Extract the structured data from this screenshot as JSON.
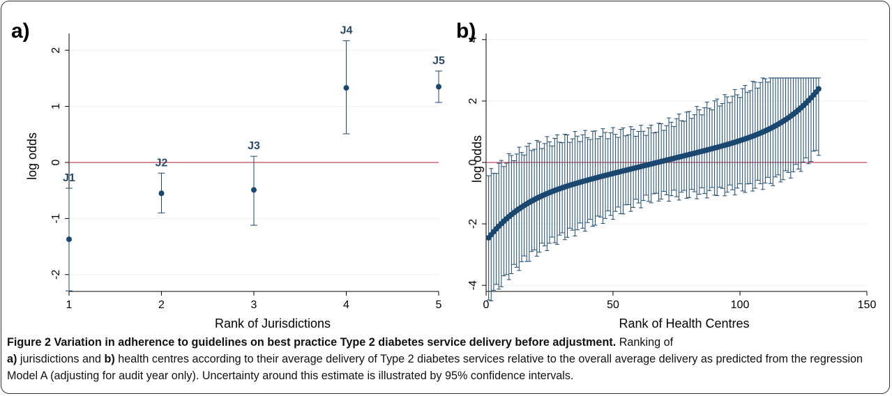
{
  "chart_data": [
    {
      "type": "scatter",
      "panel_label": "a)",
      "xlabel": "Rank of Jurisdictions",
      "ylabel": "log odds",
      "xlim": [
        1,
        5
      ],
      "ylim": [
        -2.3,
        2.3
      ],
      "xticks": [
        1,
        2,
        3,
        4,
        5
      ],
      "yticks": [
        -2,
        -1,
        0,
        1,
        2
      ],
      "reference_line_y": 0,
      "points": [
        {
          "x": 1,
          "y": -1.37,
          "lower": -2.29,
          "upper": -0.46,
          "label": "J1"
        },
        {
          "x": 2,
          "y": -0.55,
          "lower": -0.9,
          "upper": -0.19,
          "label": "J2"
        },
        {
          "x": 3,
          "y": -0.49,
          "lower": -1.12,
          "upper": 0.11,
          "label": "J3"
        },
        {
          "x": 4,
          "y": 1.33,
          "lower": 0.51,
          "upper": 2.17,
          "label": "J4"
        },
        {
          "x": 5,
          "y": 1.35,
          "lower": 1.07,
          "upper": 1.63,
          "label": "J5"
        }
      ]
    },
    {
      "type": "scatter",
      "panel_label": "b)",
      "xlabel": "Rank of Health Centres",
      "ylabel": "log odds",
      "xlim": [
        0,
        150
      ],
      "ylim": [
        -4.2,
        4.2
      ],
      "xticks": [
        0,
        50,
        100,
        150
      ],
      "yticks": [
        -4,
        -2,
        0,
        2,
        4
      ],
      "reference_line_y": 0,
      "n_points": 131,
      "y_start": -2.5,
      "y_end": 2.35
    }
  ],
  "caption": {
    "figure_label": "Figure 2",
    "title": "Variation in adherence to guidelines on best practice Type 2 diabetes service delivery before adjustment.",
    "text_1": " Ranking of ",
    "label_a": "a)",
    "text_2": " jurisdictions and ",
    "label_b": "b)",
    "text_3": " health centres according to their average delivery of Type 2 diabetes services relative to the overall average delivery as predicted from the regression Model A (adjusting for audit year only). Uncertainty around this estimate is illustrated by 95% confidence intervals."
  }
}
